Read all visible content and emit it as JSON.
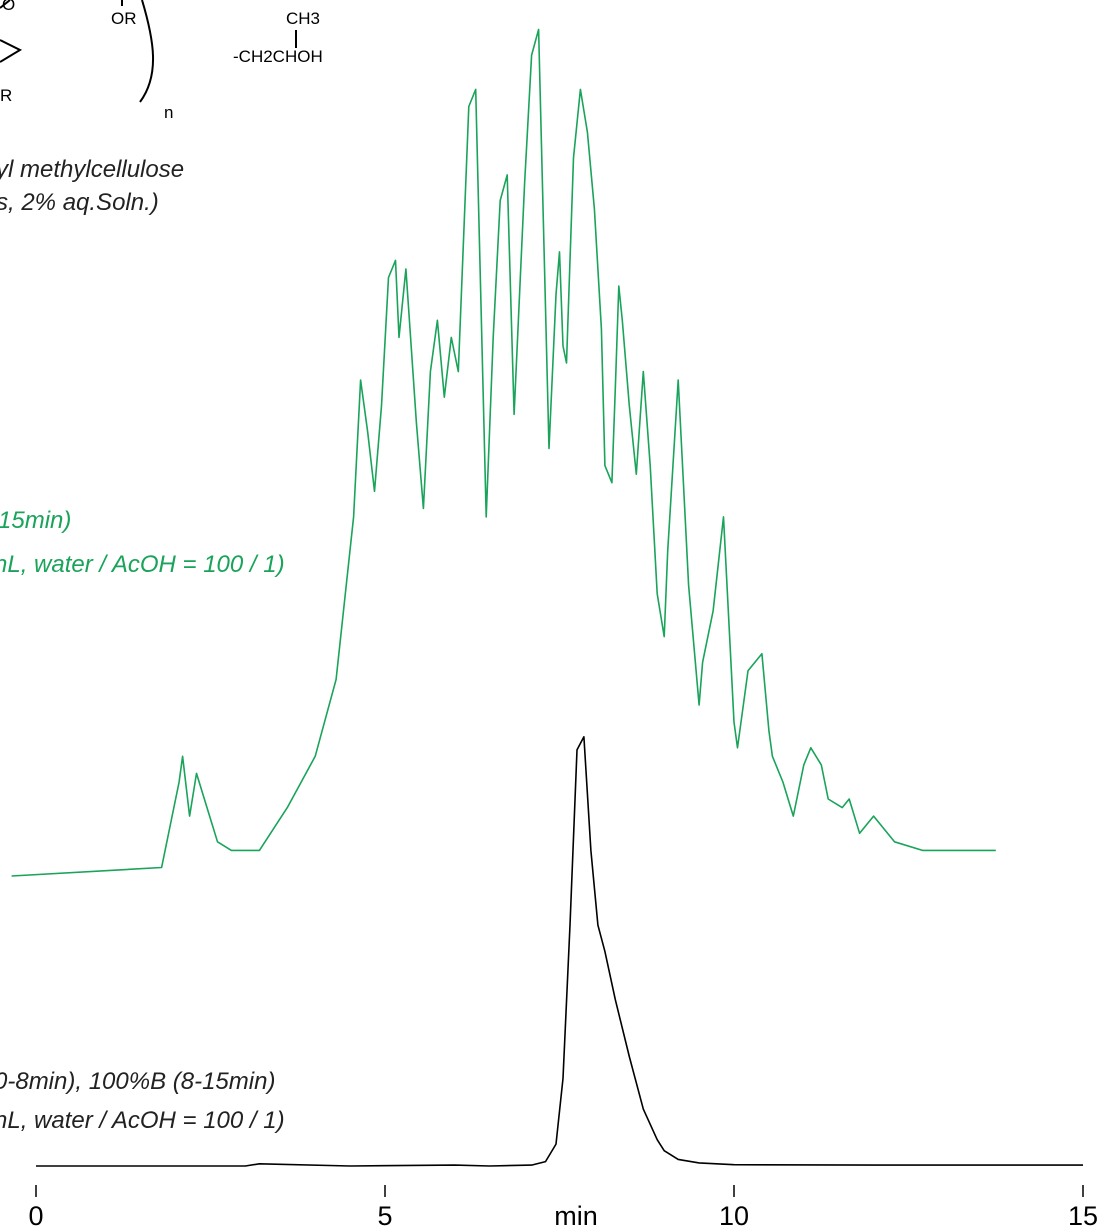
{
  "chart_data": {
    "type": "line",
    "title": "",
    "xlabel": "min",
    "ylabel": "",
    "xlim": [
      0,
      15
    ],
    "x_ticks": [
      "0",
      "5",
      "10",
      "15"
    ],
    "grid": false,
    "legend": "none",
    "structure_text": {
      "or_top": "OR",
      "o_ring": "O",
      "r_bottom": "R",
      "ch3": "CH3",
      "ch2chohh": "-CH2CHOH",
      "n": "n"
    },
    "annotations": [
      {
        "text": "yl methylcellulose",
        "color": "#000000"
      },
      {
        "text": "s, 2% aq.Soln.)",
        "color": "#000000"
      },
      {
        "text": "15min)",
        "color": "#1aa35a"
      },
      {
        "text": "nL, water / AcOH = 100 / 1)",
        "color": "#1aa35a"
      },
      {
        "text": "0-8min), 100%B (8-15min)",
        "color": "#000000"
      },
      {
        "text": "nL, water / AcOH = 100 / 1)",
        "color": "#000000"
      }
    ],
    "series": [
      {
        "color": "#1aa35a",
        "x": [
          -0.35,
          1.8,
          2.05,
          2.1,
          2.2,
          2.3,
          2.45,
          2.6,
          2.8,
          3.2,
          3.6,
          4.0,
          4.3,
          4.55,
          4.65,
          4.75,
          4.85,
          4.95,
          5.05,
          5.15,
          5.2,
          5.3,
          5.45,
          5.55,
          5.65,
          5.75,
          5.85,
          5.95,
          6.05,
          6.2,
          6.3,
          6.45,
          6.55,
          6.65,
          6.75,
          6.85,
          7.0,
          7.1,
          7.2,
          7.35,
          7.45,
          7.5,
          7.55,
          7.6,
          7.7,
          7.8,
          7.9,
          8.0,
          8.1,
          8.15,
          8.25,
          8.3,
          8.35,
          8.4,
          8.5,
          8.6,
          8.7,
          8.8,
          8.9,
          9.0,
          9.05,
          9.2,
          9.35,
          9.5,
          9.55,
          9.7,
          9.85,
          10.0,
          10.05,
          10.2,
          10.4,
          10.5,
          10.55,
          10.7,
          10.85,
          11.0,
          11.1,
          11.25,
          11.35,
          11.55,
          11.65,
          11.8,
          12.0,
          12.3,
          12.7,
          13.0,
          13.4,
          13.75
        ],
        "y": [
          0.0,
          0.01,
          0.11,
          0.14,
          0.07,
          0.12,
          0.08,
          0.04,
          0.03,
          0.03,
          0.08,
          0.14,
          0.23,
          0.42,
          0.58,
          0.52,
          0.45,
          0.55,
          0.7,
          0.72,
          0.63,
          0.71,
          0.53,
          0.43,
          0.59,
          0.65,
          0.56,
          0.63,
          0.59,
          0.9,
          0.92,
          0.42,
          0.63,
          0.79,
          0.82,
          0.54,
          0.81,
          0.96,
          0.99,
          0.5,
          0.68,
          0.73,
          0.62,
          0.6,
          0.84,
          0.92,
          0.87,
          0.78,
          0.64,
          0.48,
          0.46,
          0.57,
          0.69,
          0.65,
          0.55,
          0.47,
          0.59,
          0.48,
          0.33,
          0.28,
          0.38,
          0.58,
          0.34,
          0.2,
          0.25,
          0.31,
          0.42,
          0.18,
          0.15,
          0.24,
          0.26,
          0.17,
          0.14,
          0.11,
          0.07,
          0.13,
          0.15,
          0.13,
          0.09,
          0.08,
          0.09,
          0.05,
          0.07,
          0.04,
          0.03,
          0.03,
          0.03,
          0.03
        ]
      },
      {
        "color": "#000000",
        "x": [
          0.0,
          3.0,
          3.2,
          4.5,
          6.0,
          6.5,
          7.1,
          7.3,
          7.45,
          7.55,
          7.65,
          7.75,
          7.85,
          7.95,
          8.05,
          8.15,
          8.3,
          8.5,
          8.7,
          8.9,
          9.0,
          9.2,
          9.5,
          10.0,
          12.0,
          15.0
        ],
        "y": [
          0.0,
          0.0,
          0.005,
          0.0,
          0.002,
          0.0,
          0.002,
          0.01,
          0.05,
          0.2,
          0.55,
          0.95,
          0.98,
          0.72,
          0.55,
          0.49,
          0.38,
          0.25,
          0.13,
          0.06,
          0.035,
          0.015,
          0.007,
          0.003,
          0.002,
          0.002
        ]
      }
    ]
  }
}
